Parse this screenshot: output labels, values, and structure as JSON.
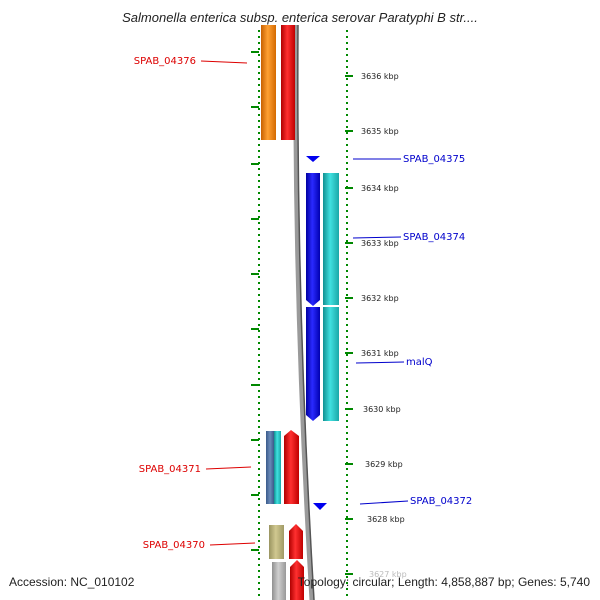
{
  "title": "Salmonella enterica subsp. enterica serovar Paratyphi B str....",
  "footer": {
    "accession": "Accession: NC_010102",
    "topology": "Topology: circular; Length: 4,858,887 bp; Genes: 5,740"
  },
  "scale_labels": [
    "3636 kbp",
    "3635 kbp",
    "3634 kbp",
    "3633 kbp",
    "3632 kbp",
    "3631 kbp",
    "3630 kbp",
    "3629 kbp",
    "3628 kbp",
    "3627 kbp"
  ],
  "gene_labels_left": [
    "SPAB_04376",
    "SPAB_04371",
    "SPAB_04370"
  ],
  "gene_labels_right": [
    "SPAB_04375",
    "SPAB_04374",
    "malQ",
    "SPAB_04372"
  ],
  "colors": {
    "left_label": "#dd0000",
    "right_label": "#0000cc",
    "orange": "#ff8800",
    "red": "#ee0000",
    "blue": "#0000ee",
    "cyan": "#22cccc",
    "tick": "#008800"
  }
}
